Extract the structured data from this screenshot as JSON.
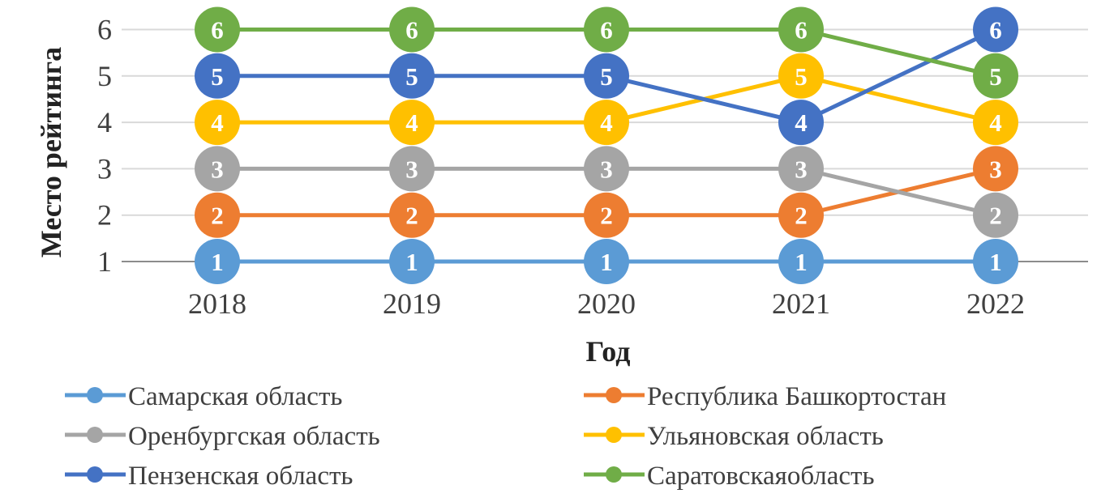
{
  "chart_data": {
    "type": "line",
    "xlabel": "Год",
    "ylabel": "Место рейтинга",
    "categories": [
      "2018",
      "2019",
      "2020",
      "2021",
      "2022"
    ],
    "yticks": [
      "1",
      "2",
      "3",
      "4",
      "5",
      "6"
    ],
    "ylim": [
      1,
      6
    ],
    "grid": true,
    "legend_position": "bottom",
    "data_labels": true,
    "series": [
      {
        "name": "Самарская область",
        "color": "#5B9BD5",
        "values": [
          1,
          1,
          1,
          1,
          1
        ]
      },
      {
        "name": "Республика Башкортостан",
        "color": "#ED7D31",
        "values": [
          2,
          2,
          2,
          2,
          3
        ]
      },
      {
        "name": "Оренбургская область",
        "color": "#A5A5A5",
        "values": [
          3,
          3,
          3,
          3,
          2
        ]
      },
      {
        "name": "Ульяновская область",
        "color": "#FFC000",
        "values": [
          4,
          4,
          4,
          5,
          4
        ]
      },
      {
        "name": "Пензенская область",
        "color": "#4472C4",
        "values": [
          5,
          5,
          5,
          4,
          6
        ]
      },
      {
        "name": "Саратовскаяобласть",
        "color": "#70AD47",
        "values": [
          6,
          6,
          6,
          6,
          5
        ]
      }
    ]
  }
}
